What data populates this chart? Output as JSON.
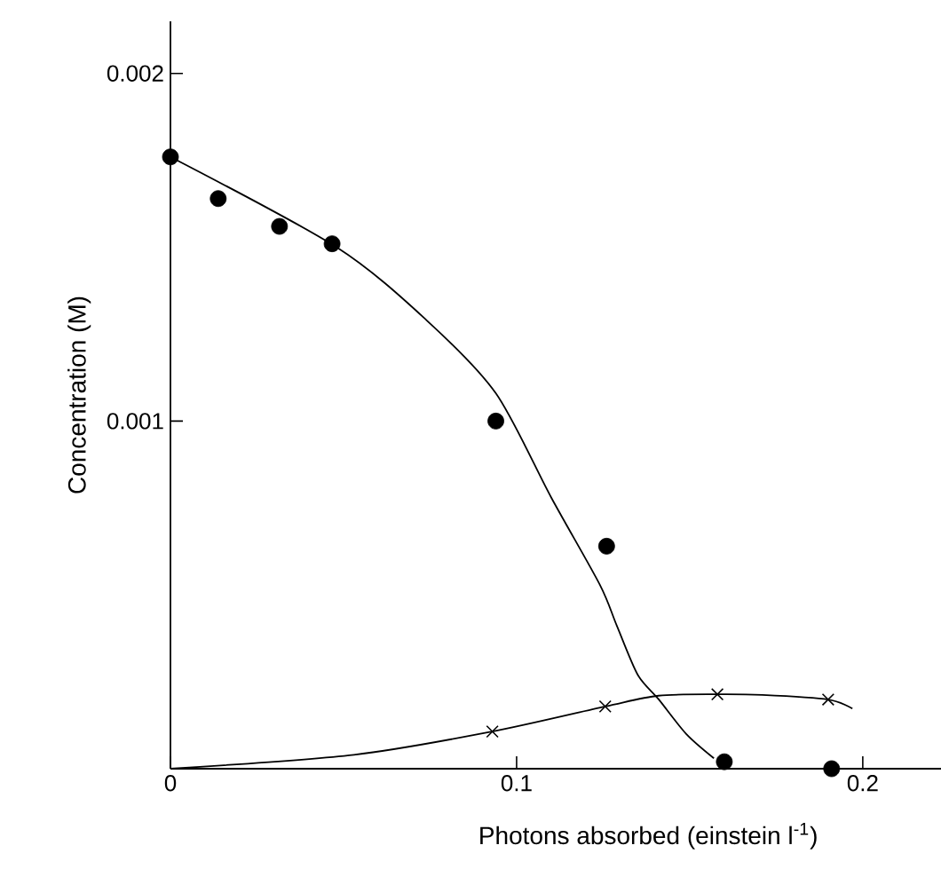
{
  "chart_data": {
    "type": "scatter",
    "xlabel": "Photons absorbed (einstein l$^{-1}$)",
    "ylabel": "Concentration (M)",
    "xlim": [
      0,
      0.2226
    ],
    "ylim": [
      0,
      0.00215
    ],
    "xticks": [
      0,
      0.1,
      0.2
    ],
    "yticks": [
      0.001,
      0.002
    ],
    "grid": false,
    "series": [
      {
        "type": "scatter",
        "marker": "circle",
        "color": "#000000",
        "x": [
          0,
          0.0138,
          0.0315,
          0.0467,
          0.094,
          0.126,
          0.16,
          0.191
        ],
        "values": [
          0.00176,
          0.00164,
          0.00156,
          0.00151,
          0.001,
          0.00064,
          2e-05,
          0.0
        ]
      },
      {
        "type": "scatter",
        "marker": "cross",
        "color": "#000000",
        "x": [
          0.093,
          0.1256,
          0.158,
          0.19
        ],
        "values": [
          0.000107,
          0.000179,
          0.000214,
          0.000199
        ]
      },
      {
        "type": "line",
        "marker": "none",
        "line_style": "solid",
        "color": "#000000",
        "x": [
          0,
          0.048,
          0.074,
          0.094,
          0.11,
          0.124,
          0.129,
          0.135,
          0.141,
          0.149,
          0.157
        ],
        "values": [
          0.00176,
          0.0015,
          0.00129,
          0.00108,
          0.00078,
          0.00053,
          0.00041,
          0.00027,
          0.0002,
          0.0001,
          3e-05
        ]
      },
      {
        "type": "line",
        "marker": "none",
        "line_style": "solid",
        "color": "#000000",
        "x": [
          0,
          0.053,
          0.093,
          0.1256,
          0.141,
          0.158,
          0.171,
          0.19,
          0.197
        ],
        "values": [
          0,
          4e-05,
          0.000107,
          0.000179,
          0.00021,
          0.000214,
          0.000212,
          0.000199,
          0.000173
        ]
      }
    ]
  }
}
